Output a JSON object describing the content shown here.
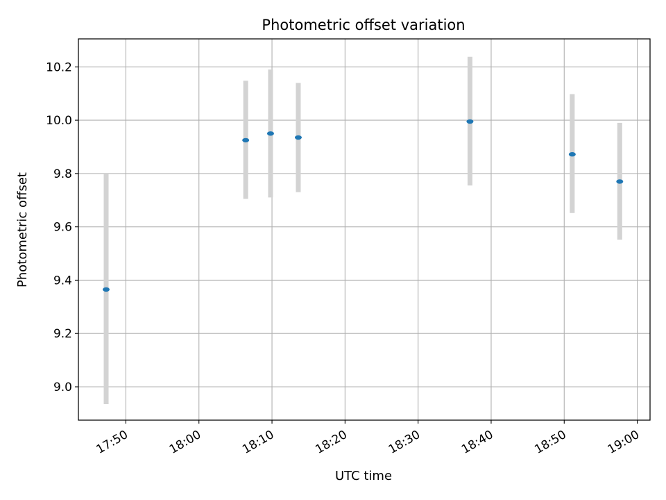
{
  "chart_data": {
    "type": "scatter",
    "title": "Photometric offset variation",
    "xlabel": "UTC time",
    "ylabel": "Photometric offset",
    "x_axis": "time",
    "xlim": [
      "17:43:30",
      "19:01:45"
    ],
    "ylim": [
      8.875,
      10.305
    ],
    "x_ticks": [
      "17:50",
      "18:00",
      "18:10",
      "18:20",
      "18:30",
      "18:40",
      "18:50",
      "19:00"
    ],
    "y_ticks": [
      9.0,
      9.2,
      9.4,
      9.6,
      9.8,
      10.0,
      10.2
    ],
    "y_tick_labels": [
      "9.0",
      "9.2",
      "9.4",
      "9.6",
      "9.8",
      "10.0",
      "10.2"
    ],
    "grid": true,
    "series": [
      {
        "points": [
          {
            "x": "17:47:18",
            "y": 9.365,
            "yerr_low": 8.935,
            "yerr_high": 9.8
          },
          {
            "x": "18:06:24",
            "y": 9.925,
            "yerr_low": 9.705,
            "yerr_high": 10.148
          },
          {
            "x": "18:09:48",
            "y": 9.95,
            "yerr_low": 9.71,
            "yerr_high": 10.19
          },
          {
            "x": "18:13:36",
            "y": 9.935,
            "yerr_low": 9.73,
            "yerr_high": 10.14
          },
          {
            "x": "18:37:06",
            "y": 9.995,
            "yerr_low": 9.755,
            "yerr_high": 10.238
          },
          {
            "x": "18:51:06",
            "y": 9.872,
            "yerr_low": 9.652,
            "yerr_high": 10.098
          },
          {
            "x": "18:57:36",
            "y": 9.77,
            "yerr_low": 9.552,
            "yerr_high": 9.99
          }
        ]
      }
    ],
    "colors": {
      "marker": "#1f77b4",
      "errorbar": "#d3d3d3",
      "grid": "#b0b0b0",
      "axes": "#000000"
    }
  }
}
